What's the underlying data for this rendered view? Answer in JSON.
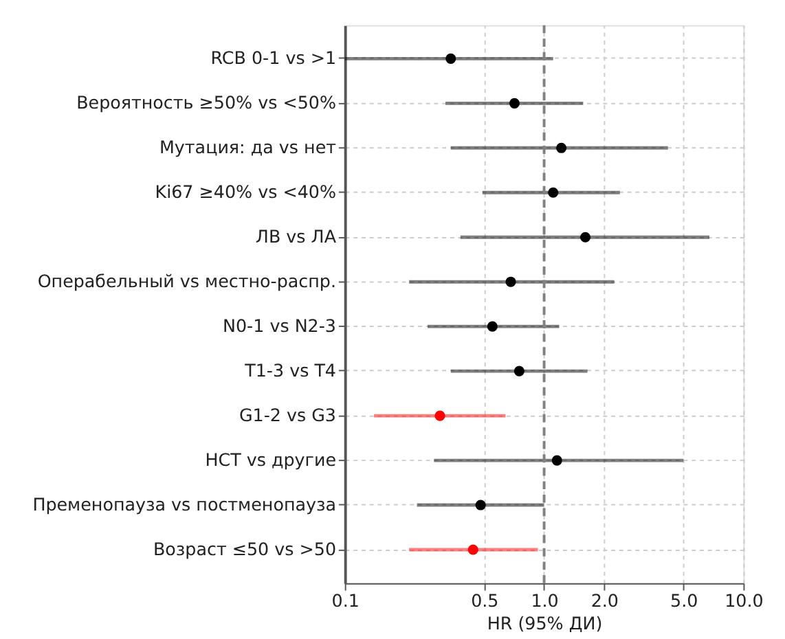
{
  "chart_data": {
    "type": "scatter",
    "orientation": "horizontal",
    "xlabel": "HR (95% ДИ)",
    "categories": [
      "RCB 0-1 vs >1",
      "Вероятность ≥50% vs <50%",
      "Мутация: да vs нет",
      "Ki67 ≥40% vs <40%",
      "ЛВ vs ЛА",
      "Операбельный vs местно-распр.",
      "N0-1 vs N2-3",
      "T1-3 vs T4",
      "G1-2 vs G3",
      "НСТ vs другие",
      "Пременопауза vs постменопауза",
      "Возраст ≤50 vs >50"
    ],
    "values": [
      0.34,
      0.71,
      1.22,
      1.11,
      1.61,
      0.68,
      0.55,
      0.75,
      0.3,
      1.16,
      0.48,
      0.44
    ],
    "errors": [
      [
        0.1,
        1.11
      ],
      [
        0.32,
        1.57
      ],
      [
        0.34,
        4.18
      ],
      [
        0.49,
        2.4
      ],
      [
        0.38,
        6.75
      ],
      [
        0.21,
        2.25
      ],
      [
        0.26,
        1.19
      ],
      [
        0.34,
        1.65
      ],
      [
        0.14,
        0.64
      ],
      [
        0.28,
        5.0
      ],
      [
        0.23,
        1.0
      ],
      [
        0.21,
        0.93
      ]
    ],
    "colors": [
      "#000000",
      "#000000",
      "#000000",
      "#000000",
      "#000000",
      "#000000",
      "#000000",
      "#000000",
      "#ff0000",
      "#000000",
      "#000000",
      "#ff0000"
    ],
    "log": "x",
    "xlim": [
      0.1,
      10
    ],
    "xticks": [
      0.1,
      0.5,
      {
        "value": 1,
        "label": "1.0"
      },
      {
        "value": 2,
        "label": "2.0"
      },
      {
        "value": 5,
        "label": "5.0"
      },
      {
        "value": 10,
        "label": "10.0"
      }
    ],
    "ref_lines": [
      {
        "axis": "x",
        "value": 1,
        "color": "#808080",
        "line_style": "dashed"
      }
    ],
    "grid": true,
    "marker": "circle"
  }
}
